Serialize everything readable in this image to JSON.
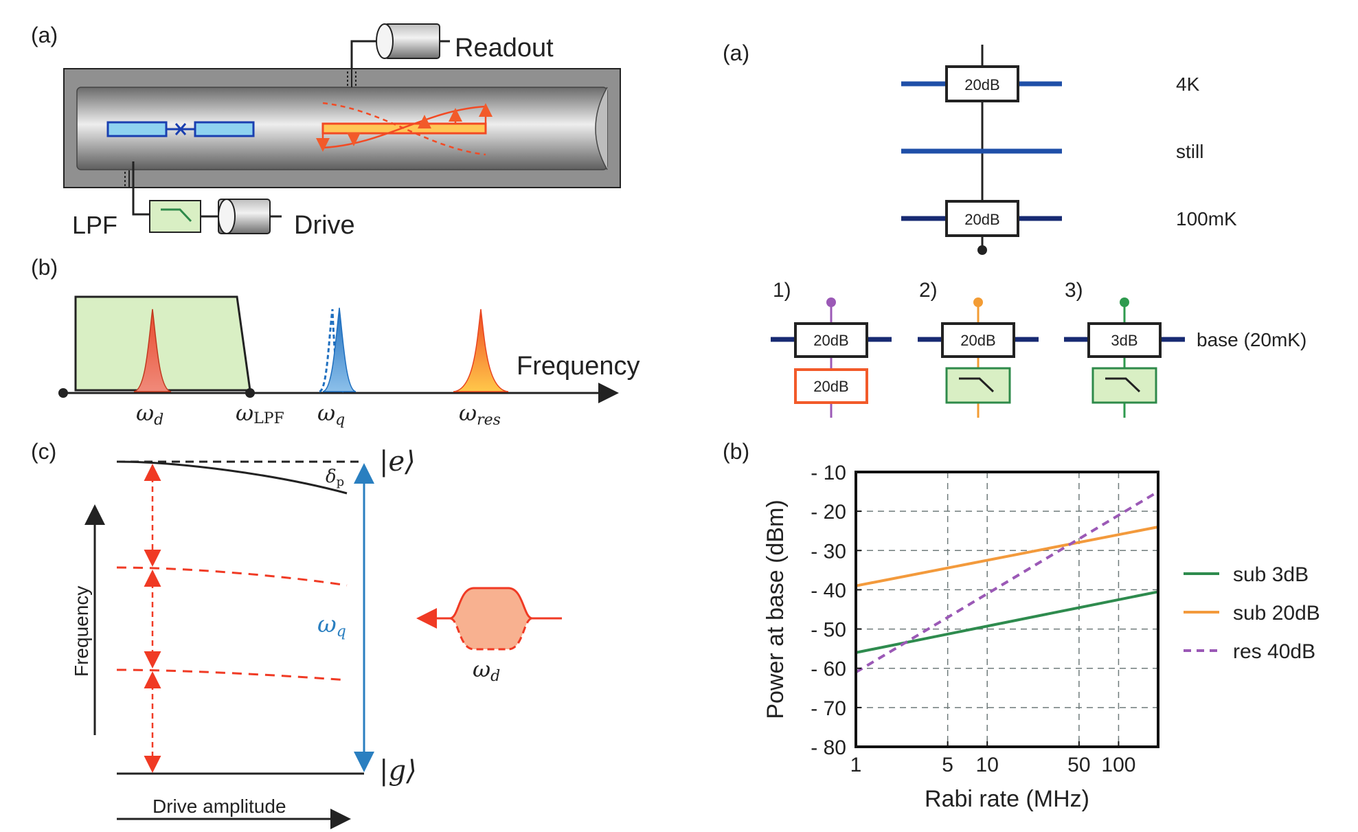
{
  "left_figure": {
    "panel_a": {
      "label": "(a)",
      "readout_label": "Readout",
      "drive_label": "Drive",
      "lpf_label": "LPF"
    },
    "panel_b": {
      "label": "(b)",
      "frequency_label": "Frequency",
      "omega_d": "ω",
      "omega_d_sub": "d",
      "omega_lpf": "ω",
      "omega_lpf_sub": "LPF",
      "omega_q": "ω",
      "omega_q_sub": "q",
      "omega_res": "ω",
      "omega_res_sub": "res"
    },
    "panel_c": {
      "label": "(c)",
      "ket_e": "|e⟩",
      "ket_g": "|g⟩",
      "delta_p": "δ",
      "delta_p_sub": "p",
      "omega_q": "ω",
      "omega_q_sub": "q",
      "omega_d": "ω",
      "omega_d_sub": "d",
      "y_label": "Frequency",
      "x_label": "Drive amplitude"
    }
  },
  "right_figure": {
    "panel_a": {
      "label": "(a)",
      "stages": [
        {
          "name": "4K",
          "attenuator": "20dB"
        },
        {
          "name": "still",
          "attenuator": ""
        },
        {
          "name": "100mK",
          "attenuator": "20dB"
        }
      ],
      "base_label": "base (20mK)",
      "configs": [
        {
          "label": "1)",
          "base_attenuator": "20dB",
          "extra": "20dB",
          "line_color": "#9b59b6"
        },
        {
          "label": "2)",
          "base_attenuator": "20dB",
          "extra": "filter",
          "line_color": "#f39c34"
        },
        {
          "label": "3)",
          "base_attenuator": "3dB",
          "extra": "filter",
          "line_color": "#2e9a4e"
        }
      ]
    },
    "panel_b": {
      "label": "(b)"
    }
  },
  "chart_data": {
    "type": "line",
    "xlabel": "Rabi rate (MHz)",
    "ylabel": "Power at base (dBm)",
    "x_scale": "log",
    "xlim": [
      1,
      200
    ],
    "ylim": [
      -80,
      -10
    ],
    "x_ticks": [
      1,
      5,
      10,
      50,
      100
    ],
    "x_tick_labels": [
      "1",
      "5",
      "10",
      "50",
      "100"
    ],
    "y_ticks": [
      -80,
      -70,
      -60,
      -50,
      -40,
      -30,
      -20,
      -10
    ],
    "y_tick_labels": [
      "- 80",
      "- 70",
      "- 60",
      "- 50",
      "- 40",
      "- 30",
      "- 20",
      "- 10"
    ],
    "grid": true,
    "legend_position": "right",
    "series": [
      {
        "name": "sub 3dB",
        "color": "#2e8b4e",
        "dashed": false,
        "x": [
          1,
          200
        ],
        "y": [
          -56,
          -40.5
        ]
      },
      {
        "name": "sub 20dB",
        "color": "#f39a3c",
        "dashed": false,
        "x": [
          1,
          200
        ],
        "y": [
          -39,
          -24
        ]
      },
      {
        "name": "res 40dB",
        "color": "#9b59b6",
        "dashed": true,
        "x": [
          1,
          200
        ],
        "y": [
          -61,
          -15
        ]
      }
    ]
  }
}
